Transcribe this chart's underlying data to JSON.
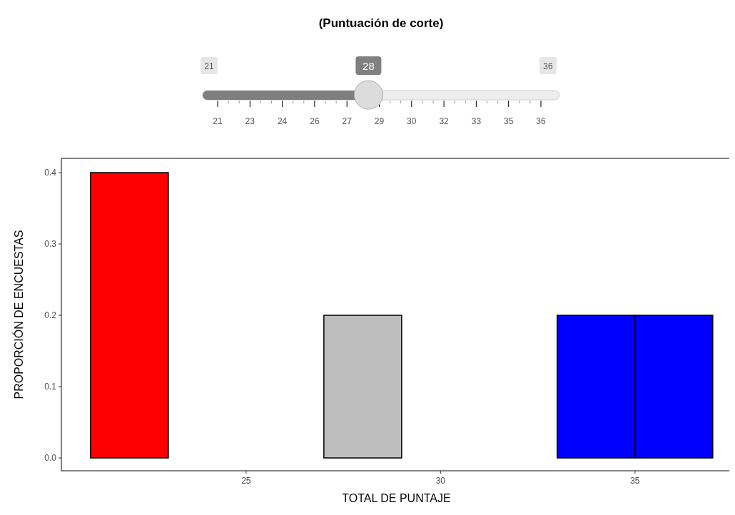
{
  "chart_data": {
    "type": "histogram",
    "title": "(Puntuación de corte)",
    "xlabel": "TOTAL DE PUNTAJE",
    "ylabel": "PROPORCIÓN DE ENCUESTAS",
    "bins": [
      21,
      23,
      25,
      27,
      29,
      31,
      33,
      35,
      37
    ],
    "values": [
      0.4,
      0,
      0,
      0.2,
      0,
      0,
      0.2,
      0.2
    ],
    "colors": [
      "#ff0000",
      "#ff0000",
      "#ff0000",
      "#bebebe",
      "#0000ff",
      "#0000ff",
      "#0000ff",
      "#0000ff"
    ],
    "xlim": [
      20.25,
      37.48
    ],
    "xticks": [
      25,
      30,
      35
    ],
    "ylim": [
      -0.018,
      0.42
    ],
    "yticks": [
      {
        "value": 0,
        "label": "0.0"
      },
      0.1,
      0.2,
      0.3,
      0.4
    ],
    "grid": false,
    "annotations": [
      "21",
      "28",
      "36",
      "21",
      "23",
      "24",
      "26",
      "27",
      "29",
      "30",
      "32",
      "33",
      "35",
      "36"
    ]
  }
}
